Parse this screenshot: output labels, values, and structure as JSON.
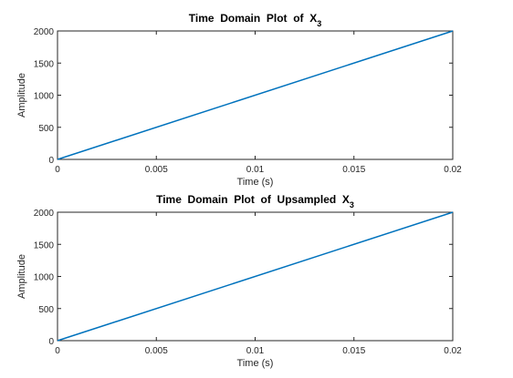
{
  "chart_data": [
    {
      "type": "line",
      "title": "Time Domain Plot of X",
      "title_subscript": "3",
      "xlabel": "Time (s)",
      "ylabel": "Amplitude",
      "xlim": [
        0,
        0.02
      ],
      "ylim": [
        0,
        2000
      ],
      "xticks": [
        "0",
        "0.005",
        "0.01",
        "0.015",
        "0.02"
      ],
      "yticks": [
        "0",
        "500",
        "1000",
        "1500",
        "2000"
      ],
      "grid": false,
      "line_color": "#0072BD",
      "series": [
        {
          "x": [
            0,
            0.02
          ],
          "y": [
            0,
            2000
          ]
        }
      ]
    },
    {
      "type": "line",
      "title": "Time Domain Plot of Upsampled X",
      "title_subscript": "3",
      "xlabel": "Time (s)",
      "ylabel": "Amplitude",
      "xlim": [
        0,
        0.02
      ],
      "ylim": [
        0,
        2000
      ],
      "xticks": [
        "0",
        "0.005",
        "0.01",
        "0.015",
        "0.02"
      ],
      "yticks": [
        "0",
        "500",
        "1000",
        "1500",
        "2000"
      ],
      "grid": false,
      "line_color": "#0072BD",
      "series": [
        {
          "x": [
            0,
            0.02
          ],
          "y": [
            0,
            2000
          ]
        }
      ]
    }
  ]
}
